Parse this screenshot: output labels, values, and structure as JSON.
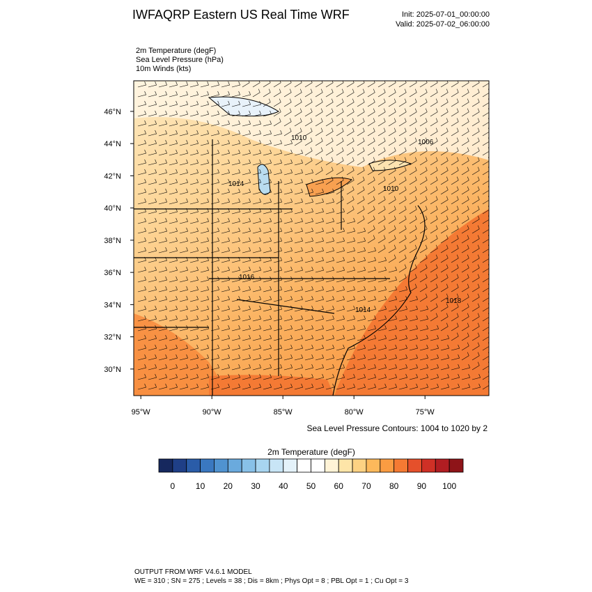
{
  "header": {
    "title": "IWFAQRP Eastern US Real Time WRF",
    "init": "Init: 2025-07-01_00:00:00",
    "valid": "Valid: 2025-07-02_06:00:00"
  },
  "fields": [
    "2m Temperature   (degF)",
    "Sea Level Pressure   (hPa)",
    "10m Winds   (kts)"
  ],
  "map": {
    "lat_lim": [
      28.35,
      47.9
    ],
    "lon_lim": [
      -95.5,
      -70.5
    ],
    "lat_ticks": [
      {
        "value": 30,
        "label": "30°N"
      },
      {
        "value": 32,
        "label": "32°N"
      },
      {
        "value": 34,
        "label": "34°N"
      },
      {
        "value": 36,
        "label": "36°N"
      },
      {
        "value": 38,
        "label": "38°N"
      },
      {
        "value": 40,
        "label": "40°N"
      },
      {
        "value": 42,
        "label": "42°N"
      },
      {
        "value": 44,
        "label": "44°N"
      },
      {
        "value": 46,
        "label": "46°N"
      }
    ],
    "lon_ticks": [
      {
        "value": -95,
        "label": "95°W"
      },
      {
        "value": -90,
        "label": "90°W"
      },
      {
        "value": -85,
        "label": "85°W"
      },
      {
        "value": -80,
        "label": "80°W"
      },
      {
        "value": -75,
        "label": "75°W"
      }
    ],
    "contour_labels": [
      "1010",
      "1006",
      "1014",
      "1010",
      "1016",
      "1014",
      "1018"
    ],
    "contour_note": "Sea Level Pressure Contours: 1004 to 1020 by 2"
  },
  "colorbar": {
    "title": "2m Temperature  (degF)",
    "lim": [
      -5,
      105
    ],
    "ticks": [
      0,
      10,
      20,
      30,
      40,
      50,
      60,
      70,
      80,
      90,
      100
    ],
    "colors": [
      "#16285e",
      "#1f3f87",
      "#2a5ca8",
      "#3a78c0",
      "#5093d0",
      "#6aaadd",
      "#88c1e8",
      "#a8d5f0",
      "#c8e5f6",
      "#e4f2fa",
      "#ffffff",
      "#ffffff",
      "#fff3d6",
      "#fee5a8",
      "#fdd283",
      "#fdb95b",
      "#fb9c42",
      "#f57a33",
      "#e5502b",
      "#cf3026",
      "#b11d22",
      "#8e1418"
    ]
  },
  "footer": {
    "line1": "OUTPUT FROM WRF V4.6.1 MODEL",
    "line2": "WE = 310 ; SN = 275 ; Levels = 38 ; Dis = 8km ; Phys Opt = 8 ; PBL Opt = 1 ; Cu Opt = 3"
  }
}
